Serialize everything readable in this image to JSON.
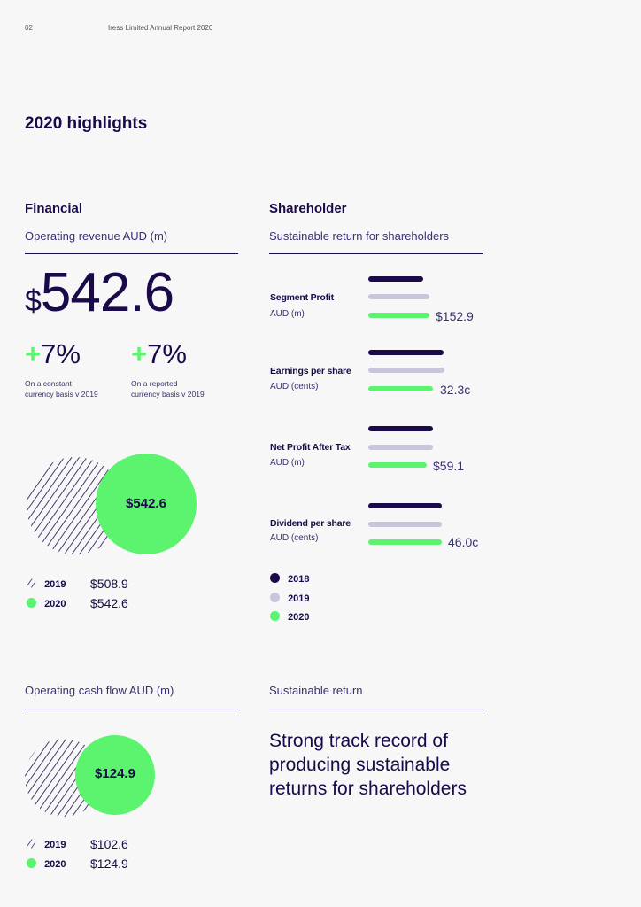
{
  "header": {
    "page_no": "02",
    "doc_title": "Iress Limited  Annual Report 2020"
  },
  "title": "2020 highlights",
  "financial": {
    "heading": "Financial",
    "revenue_label": "Operating revenue AUD (m)",
    "revenue_currency": "$",
    "revenue_value": "542.6",
    "growth": [
      {
        "plus": "+",
        "value": "7%",
        "note_line1": "On a constant",
        "note_line2": "currency basis v 2019"
      },
      {
        "plus": "+",
        "value": "7%",
        "note_line1": "On a reported",
        "note_line2": "currency basis v 2019"
      }
    ],
    "revenue_bubble": "$542.6",
    "revenue_legend": [
      {
        "year": "2019",
        "value": "$508.9"
      },
      {
        "year": "2020",
        "value": "$542.6"
      }
    ],
    "cashflow_label": "Operating cash flow AUD (m)",
    "cashflow_bubble": "$124.9",
    "cashflow_legend": [
      {
        "year": "2019",
        "value": "$102.6"
      },
      {
        "year": "2020",
        "value": "$124.9"
      }
    ]
  },
  "shareholder": {
    "heading": "Shareholder",
    "subtitle": "Sustainable return for shareholders",
    "metrics": [
      {
        "label": "Segment Profit",
        "unit": "AUD (m)",
        "value_2020": "$152.9"
      },
      {
        "label": "Earnings per share",
        "unit": "AUD (cents)",
        "value_2020": "32.3c"
      },
      {
        "label": "Net Profit After Tax",
        "unit": "AUD (m)",
        "value_2020": "$59.1"
      },
      {
        "label": "Dividend per share",
        "unit": "AUD (cents)",
        "value_2020": "46.0c"
      }
    ],
    "legend": [
      {
        "year": "2018",
        "color": "#1a0a4a"
      },
      {
        "year": "2019",
        "color": "#c9c5dc"
      },
      {
        "year": "2020",
        "color": "#5cf36e"
      }
    ],
    "return_label": "Sustainable return",
    "quote_line1": "Strong track record of",
    "quote_line2": "producing sustainable",
    "quote_line3": "returns for shareholders"
  },
  "colors": {
    "navy": "#1a0a4a",
    "lavender": "#c9c5dc",
    "green": "#5cf36e"
  }
}
